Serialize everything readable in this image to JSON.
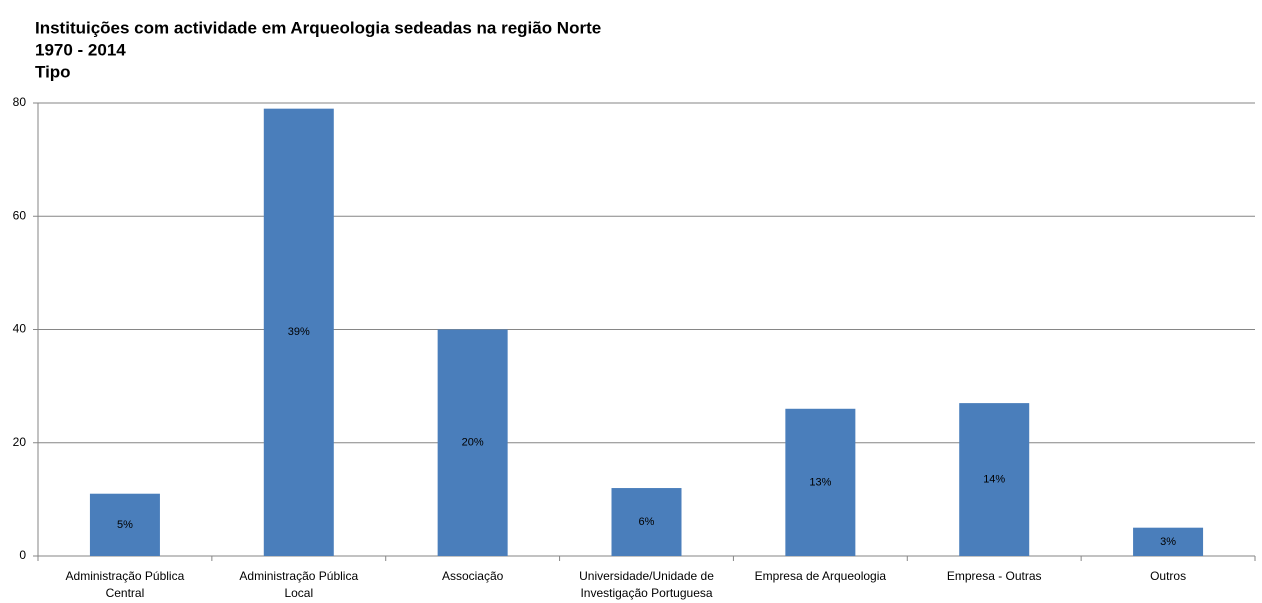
{
  "chart_data": {
    "type": "bar",
    "title": [
      "Instituições com actividade em Arqueologia sedeadas na região Norte",
      "1970 - 2014",
      "Tipo"
    ],
    "categories": [
      [
        "Administração Pública",
        "Central"
      ],
      [
        "Administração Pública",
        "Local"
      ],
      [
        "Associação"
      ],
      [
        "Universidade/Unidade de",
        "Investigação Portuguesa"
      ],
      [
        "Empresa de Arqueologia"
      ],
      [
        "Empresa - Outras"
      ],
      [
        "Outros"
      ]
    ],
    "values": [
      11,
      79,
      40,
      12,
      26,
      27,
      5
    ],
    "share_labels": [
      "5%",
      "39%",
      "20%",
      "6%",
      "13%",
      "14%",
      "3%"
    ],
    "color": "#4a7ebb",
    "ylim": [
      0,
      80
    ],
    "yticks": [
      0,
      20,
      40,
      60,
      80
    ],
    "grid": true
  }
}
